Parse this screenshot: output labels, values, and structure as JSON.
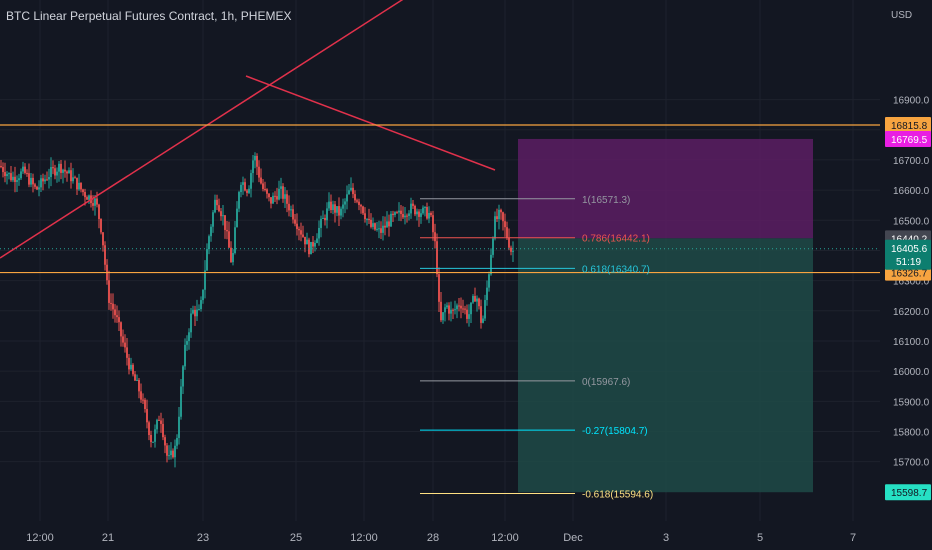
{
  "header": {
    "title": "BTC Linear Perpetual Futures Contract, 1h, PHEMEX"
  },
  "colors": {
    "background": "#131722",
    "grid": "#1e222d",
    "up": "#26a69a",
    "down": "#ef5350",
    "trendline": "#e0314b",
    "horizontal_line": "#f7a440",
    "fib_one": "#9598a1",
    "fib_786": "#ef5350",
    "fib_618": "#26c6da",
    "fib_zero": "#9598a1",
    "fib_neg27": "#00e5ff",
    "fib_neg618": "#ffe082",
    "target_zone": "#5c1d63",
    "stop_zone": "#1f4a47",
    "axis_text": "#b2b5be"
  },
  "chart_data": {
    "type": "candlestick",
    "title": "BTC Linear Perpetual Futures Contract, 1h, PHEMEX",
    "y_unit": "USD",
    "ylim": [
      15510,
      17230
    ],
    "y_ticks": [
      15700,
      15800,
      15900,
      16000,
      16100,
      16200,
      16300,
      16400,
      16500,
      16600,
      16700,
      16800,
      16900
    ],
    "y_tick_labels": [
      "15700.0",
      "15800.0",
      "15900.0",
      "16000.0",
      "16100.0",
      "16200.0",
      "16300.0",
      "16400.0",
      "16500.0",
      "16600.0",
      "16700.0",
      "16800.0",
      "16900.0"
    ],
    "x_ticks": [
      "12:00",
      "21",
      "23",
      "25",
      "12:00",
      "28",
      "12:00",
      "Dec",
      "3",
      "5",
      "7"
    ],
    "price_path": [
      [
        0,
        16680
      ],
      [
        12,
        16640
      ],
      [
        24,
        16660
      ],
      [
        36,
        16600
      ],
      [
        48,
        16650
      ],
      [
        60,
        16680
      ],
      [
        72,
        16640
      ],
      [
        84,
        16590
      ],
      [
        96,
        16560
      ],
      [
        102,
        16460
      ],
      [
        108,
        16250
      ],
      [
        116,
        16180
      ],
      [
        124,
        16080
      ],
      [
        132,
        15990
      ],
      [
        140,
        15930
      ],
      [
        148,
        15820
      ],
      [
        152,
        15760
      ],
      [
        160,
        15860
      ],
      [
        168,
        15700
      ],
      [
        176,
        15750
      ],
      [
        184,
        16050
      ],
      [
        192,
        16200
      ],
      [
        200,
        16190
      ],
      [
        208,
        16430
      ],
      [
        216,
        16580
      ],
      [
        224,
        16500
      ],
      [
        232,
        16350
      ],
      [
        240,
        16640
      ],
      [
        248,
        16600
      ],
      [
        254,
        16720
      ],
      [
        262,
        16610
      ],
      [
        270,
        16560
      ],
      [
        280,
        16600
      ],
      [
        290,
        16540
      ],
      [
        300,
        16470
      ],
      [
        310,
        16400
      ],
      [
        320,
        16480
      ],
      [
        330,
        16550
      ],
      [
        340,
        16520
      ],
      [
        350,
        16600
      ],
      [
        360,
        16560
      ],
      [
        370,
        16480
      ],
      [
        380,
        16460
      ],
      [
        390,
        16500
      ],
      [
        400,
        16520
      ],
      [
        410,
        16540
      ],
      [
        420,
        16530
      ],
      [
        430,
        16520
      ],
      [
        436,
        16400
      ],
      [
        440,
        16150
      ],
      [
        446,
        16220
      ],
      [
        452,
        16190
      ],
      [
        460,
        16230
      ],
      [
        468,
        16180
      ],
      [
        476,
        16260
      ],
      [
        482,
        16150
      ],
      [
        488,
        16300
      ],
      [
        494,
        16490
      ],
      [
        500,
        16520
      ],
      [
        506,
        16460
      ],
      [
        512,
        16390
      ],
      [
        514,
        16406
      ]
    ],
    "current_price": 16405.6,
    "countdown": "51:19",
    "price_labels": [
      {
        "value": 16815.8,
        "text": "16815.8",
        "color": "#f7a440",
        "text_color": "#131722"
      },
      {
        "value": 16769.5,
        "text": "16769.5",
        "color": "#e91ee3",
        "text_color": "#ffffff"
      },
      {
        "value": 16440.2,
        "text": "16440.2",
        "color": "#434651",
        "text_color": "#ffffff"
      },
      {
        "value": 16326.7,
        "text": "16326.7",
        "color": "#f7a440",
        "text_color": "#131722"
      },
      {
        "value": 15598.7,
        "text": "15598.7",
        "color": "#26e0c4",
        "text_color": "#131722"
      }
    ],
    "horizontal_lines": [
      16815.8,
      16326.7
    ],
    "fib_levels": [
      {
        "label": "1(16571.3)",
        "value": 16571.3
      },
      {
        "label": "0.786(16442.1)",
        "value": 16442.1
      },
      {
        "label": "0.618(16340.7)",
        "value": 16340.7
      },
      {
        "label": "0(15967.6)",
        "value": 15967.6
      },
      {
        "label": "-0.27(15804.7)",
        "value": 15804.7
      },
      {
        "label": "-0.618(15594.6)",
        "value": 15594.6
      }
    ],
    "position_tool": {
      "entry": 16440.2,
      "target": 16769.5,
      "stop": 15598.7
    }
  }
}
